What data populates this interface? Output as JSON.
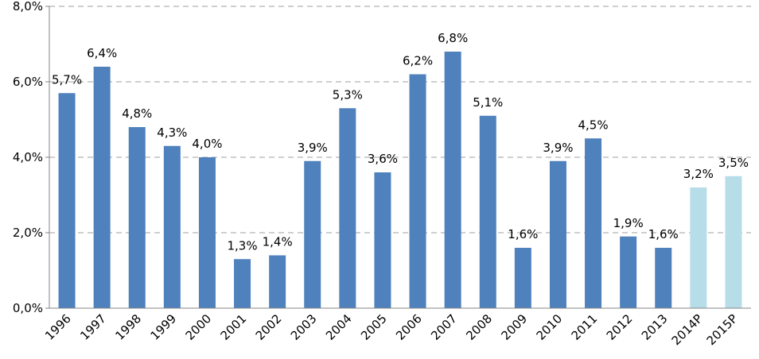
{
  "chart_data": {
    "type": "bar",
    "categories": [
      "1996",
      "1997",
      "1998",
      "1999",
      "2000",
      "2001",
      "2002",
      "2003",
      "2004",
      "2005",
      "2006",
      "2007",
      "2008",
      "2009",
      "2010",
      "2011",
      "2012",
      "2013",
      "2014P",
      "2015P"
    ],
    "values": [
      5.7,
      6.4,
      4.8,
      4.3,
      4.0,
      1.3,
      1.4,
      3.9,
      5.3,
      3.6,
      6.2,
      6.8,
      5.1,
      1.6,
      3.9,
      4.5,
      1.9,
      1.6,
      3.2,
      3.5
    ],
    "data_labels": [
      "5,7%",
      "6,4%",
      "4,8%",
      "4,3%",
      "4,0%",
      "1,3%",
      "1,4%",
      "3,9%",
      "5,3%",
      "3,6%",
      "6,2%",
      "6,8%",
      "5,1%",
      "1,6%",
      "3,9%",
      "4,5%",
      "1,9%",
      "1,6%",
      "3,2%",
      "3,5%"
    ],
    "projected": [
      false,
      false,
      false,
      false,
      false,
      false,
      false,
      false,
      false,
      false,
      false,
      false,
      false,
      false,
      false,
      false,
      false,
      false,
      true,
      true
    ],
    "yticks": [
      0,
      2,
      4,
      6,
      8
    ],
    "ytick_labels": [
      "0,0%",
      "2,0%",
      "4,0%",
      "6,0%",
      "8,0%"
    ],
    "ylim": [
      0,
      8
    ],
    "title": "",
    "xlabel": "",
    "ylabel": "",
    "grid": true,
    "legend": "none",
    "colors": {
      "actual": "#4f81bd",
      "projected": "#b7dde8",
      "grid": "#bfbfbf",
      "axis": "#868686"
    }
  }
}
